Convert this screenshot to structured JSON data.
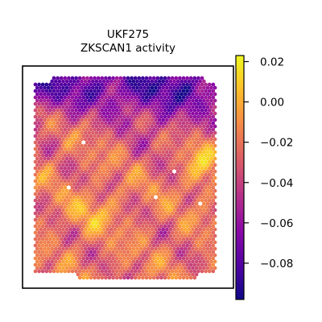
{
  "chart_data": {
    "type": "heatmap",
    "title": "UKF275",
    "subtitle": "ZKSCAN1 activity",
    "xlabel": "",
    "ylabel": "",
    "colormap": "plasma",
    "colorbar": {
      "range": [
        -0.098,
        0.023
      ],
      "ticks": [
        0.02,
        0.0,
        -0.02,
        -0.04,
        -0.06,
        -0.08
      ],
      "tick_labels": [
        "0.02",
        "0.00",
        "−0.02",
        "−0.04",
        "−0.06",
        "−0.08"
      ]
    },
    "axes_ticks_visible": false,
    "grid": false,
    "legend": "none"
  },
  "colors": {
    "colormap_stops": [
      "#0d0887",
      "#5302a3",
      "#8b0aa5",
      "#b83289",
      "#db5c68",
      "#f48849",
      "#febd2a",
      "#f0f921"
    ],
    "frame": "#000000",
    "background": "#ffffff",
    "empty_spot": "#ffffff"
  }
}
